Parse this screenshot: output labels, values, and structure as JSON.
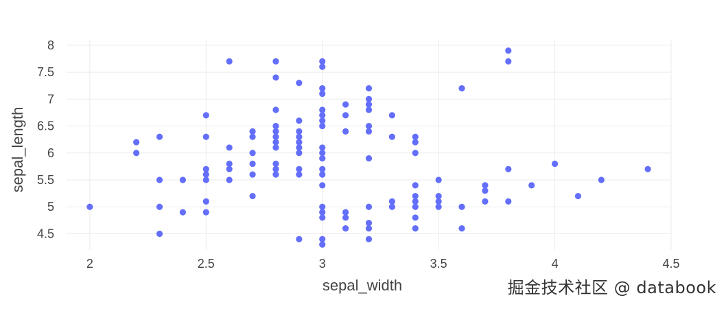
{
  "chart_data": {
    "type": "scatter",
    "xlabel": "sepal_width",
    "ylabel": "sepal_length",
    "xlim": [
      1.9,
      4.5
    ],
    "ylim": [
      4.2,
      8.1
    ],
    "xticks": [
      "2",
      "2.5",
      "3",
      "3.5",
      "4",
      "4.5"
    ],
    "yticks": [
      "4.5",
      "5",
      "5.5",
      "6",
      "6.5",
      "7",
      "7.5",
      "8"
    ],
    "grid": true,
    "marker_color": "#636efa",
    "points": [
      [
        2.0,
        5.0
      ],
      [
        2.2,
        6.2
      ],
      [
        2.2,
        6.0
      ],
      [
        2.3,
        6.3
      ],
      [
        2.3,
        5.5
      ],
      [
        2.3,
        5.0
      ],
      [
        2.3,
        4.5
      ],
      [
        2.4,
        5.5
      ],
      [
        2.4,
        4.9
      ],
      [
        2.5,
        6.7
      ],
      [
        2.5,
        6.3
      ],
      [
        2.5,
        5.7
      ],
      [
        2.5,
        5.6
      ],
      [
        2.5,
        5.5
      ],
      [
        2.5,
        5.1
      ],
      [
        2.5,
        4.9
      ],
      [
        2.6,
        7.7
      ],
      [
        2.6,
        6.1
      ],
      [
        2.6,
        5.8
      ],
      [
        2.6,
        5.7
      ],
      [
        2.6,
        5.5
      ],
      [
        2.7,
        6.4
      ],
      [
        2.7,
        6.3
      ],
      [
        2.7,
        6.0
      ],
      [
        2.7,
        5.8
      ],
      [
        2.7,
        5.6
      ],
      [
        2.7,
        5.2
      ],
      [
        2.8,
        7.7
      ],
      [
        2.8,
        7.4
      ],
      [
        2.8,
        6.8
      ],
      [
        2.8,
        6.5
      ],
      [
        2.8,
        6.4
      ],
      [
        2.8,
        6.3
      ],
      [
        2.8,
        6.2
      ],
      [
        2.8,
        6.1
      ],
      [
        2.8,
        5.8
      ],
      [
        2.8,
        5.7
      ],
      [
        2.8,
        5.6
      ],
      [
        2.9,
        7.3
      ],
      [
        2.9,
        6.6
      ],
      [
        2.9,
        6.4
      ],
      [
        2.9,
        6.3
      ],
      [
        2.9,
        6.2
      ],
      [
        2.9,
        6.1
      ],
      [
        2.9,
        6.0
      ],
      [
        2.9,
        5.7
      ],
      [
        2.9,
        5.6
      ],
      [
        2.9,
        4.4
      ],
      [
        3.0,
        7.7
      ],
      [
        3.0,
        7.6
      ],
      [
        3.0,
        7.2
      ],
      [
        3.0,
        7.1
      ],
      [
        3.0,
        6.8
      ],
      [
        3.0,
        6.7
      ],
      [
        3.0,
        6.6
      ],
      [
        3.0,
        6.5
      ],
      [
        3.0,
        6.1
      ],
      [
        3.0,
        6.0
      ],
      [
        3.0,
        5.9
      ],
      [
        3.0,
        5.7
      ],
      [
        3.0,
        5.6
      ],
      [
        3.0,
        5.4
      ],
      [
        3.0,
        5.0
      ],
      [
        3.0,
        4.9
      ],
      [
        3.0,
        4.8
      ],
      [
        3.0,
        4.4
      ],
      [
        3.0,
        4.3
      ],
      [
        3.1,
        6.9
      ],
      [
        3.1,
        6.7
      ],
      [
        3.1,
        6.4
      ],
      [
        3.1,
        4.9
      ],
      [
        3.1,
        4.8
      ],
      [
        3.1,
        4.6
      ],
      [
        3.2,
        7.2
      ],
      [
        3.2,
        7.0
      ],
      [
        3.2,
        6.9
      ],
      [
        3.2,
        6.8
      ],
      [
        3.2,
        6.5
      ],
      [
        3.2,
        6.4
      ],
      [
        3.2,
        5.9
      ],
      [
        3.2,
        5.0
      ],
      [
        3.2,
        4.7
      ],
      [
        3.2,
        4.6
      ],
      [
        3.2,
        4.4
      ],
      [
        3.3,
        6.7
      ],
      [
        3.3,
        6.3
      ],
      [
        3.3,
        5.1
      ],
      [
        3.3,
        5.0
      ],
      [
        3.4,
        6.3
      ],
      [
        3.4,
        6.2
      ],
      [
        3.4,
        6.0
      ],
      [
        3.4,
        5.4
      ],
      [
        3.4,
        5.2
      ],
      [
        3.4,
        5.1
      ],
      [
        3.4,
        5.0
      ],
      [
        3.4,
        4.8
      ],
      [
        3.4,
        4.6
      ],
      [
        3.5,
        5.5
      ],
      [
        3.5,
        5.2
      ],
      [
        3.5,
        5.1
      ],
      [
        3.5,
        5.0
      ],
      [
        3.6,
        7.2
      ],
      [
        3.6,
        5.0
      ],
      [
        3.6,
        4.6
      ],
      [
        3.7,
        5.4
      ],
      [
        3.7,
        5.3
      ],
      [
        3.7,
        5.1
      ],
      [
        3.8,
        7.9
      ],
      [
        3.8,
        7.7
      ],
      [
        3.8,
        5.7
      ],
      [
        3.8,
        5.1
      ],
      [
        3.9,
        5.4
      ],
      [
        4.0,
        5.8
      ],
      [
        4.1,
        5.2
      ],
      [
        4.2,
        5.5
      ],
      [
        4.4,
        5.7
      ]
    ]
  },
  "watermark": "掘金技术社区 @ databook"
}
